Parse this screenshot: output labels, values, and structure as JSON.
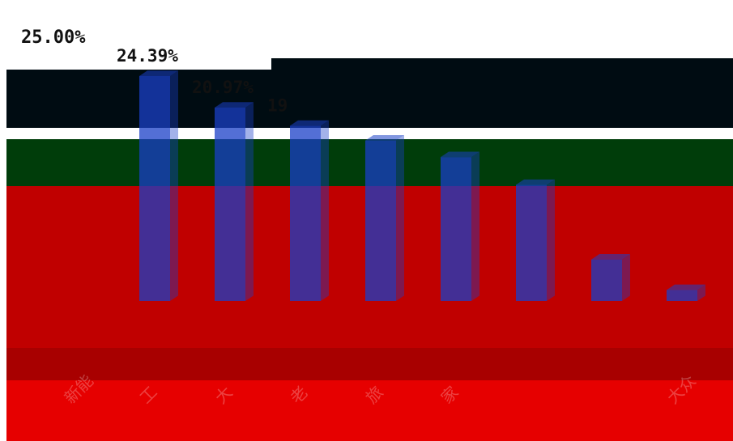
{
  "chart_data": {
    "type": "bar",
    "title": "",
    "xlabel": "",
    "ylabel": "",
    "ylim": [
      0,
      30
    ],
    "ymax_label": "25.00%",
    "categories": [
      "新能",
      "工",
      "大",
      "老",
      "旅",
      "家",
      "",
      "",
      "大众"
    ],
    "values": [
      null,
      24.39,
      20.97,
      19,
      null,
      null,
      null,
      null,
      null
    ],
    "value_labels": [
      "",
      "24.39%",
      "20.97%",
      "19",
      "",
      "",
      "",
      "",
      ""
    ],
    "bar_color": "#1a3fc7",
    "grid": false,
    "legend": "none"
  },
  "colors": {
    "band_black": "#000c12",
    "band_green": "#003d0a",
    "band_red": "#c00000",
    "band_dark": "#a80000",
    "band_lower": "#e60000",
    "bar_in_red": "#d4145a"
  }
}
